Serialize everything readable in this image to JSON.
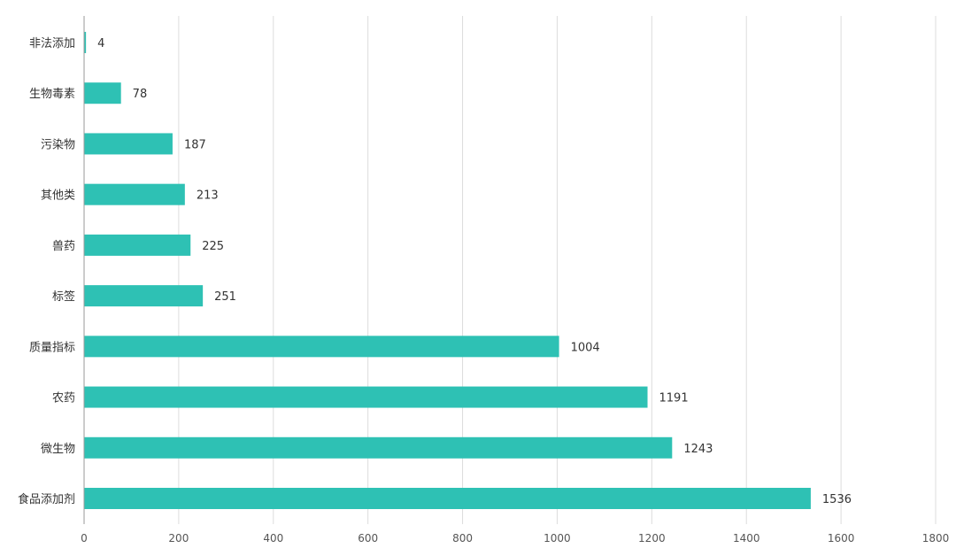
{
  "chart_data": {
    "type": "bar",
    "orientation": "horizontal",
    "title": "",
    "xlabel": "",
    "ylabel": "",
    "categories": [
      "非法添加",
      "生物毒素",
      "污染物",
      "其他类",
      "兽药",
      "标签",
      "质量指标",
      "农药",
      "微生物",
      "食品添加剂"
    ],
    "values": [
      4,
      78,
      187,
      213,
      225,
      251,
      1004,
      1191,
      1243,
      1536
    ],
    "xlim": [
      0,
      1800
    ],
    "xticks": [
      0,
      200,
      400,
      600,
      800,
      1000,
      1200,
      1400,
      1600,
      1800
    ],
    "grid": true,
    "legend": "none",
    "bar_color": "#2ec1b4"
  }
}
